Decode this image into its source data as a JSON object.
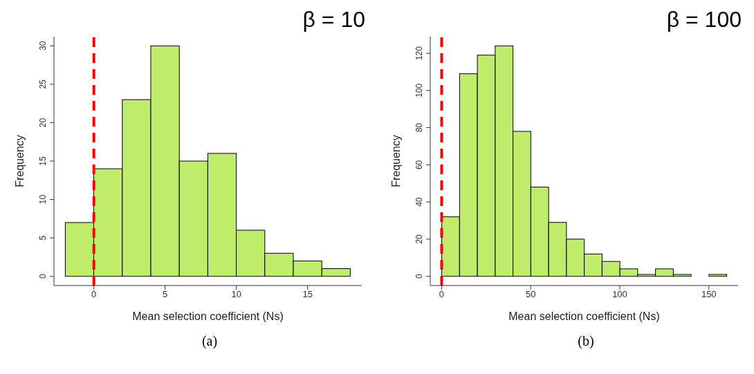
{
  "chart_data": [
    {
      "type": "histogram",
      "title": "β = 10",
      "xlabel": "Mean selection coefficient (Ns)",
      "ylabel": "Frequency",
      "bins": [
        -2,
        0,
        2,
        4,
        6,
        8,
        10,
        12,
        14,
        16,
        18
      ],
      "values": [
        7,
        14,
        23,
        30,
        15,
        16,
        6,
        3,
        2,
        1
      ],
      "color": "#c0ec6b",
      "xlim": [
        -2.8,
        18.8
      ],
      "xticks": [
        0,
        5,
        10,
        15
      ],
      "ylim": [
        -1.2,
        31.2
      ],
      "yticks": [
        0,
        5,
        10,
        15,
        20,
        25,
        30
      ],
      "grid": false,
      "legend": false,
      "ref_lines": [
        {
          "axis": "x",
          "value": 0,
          "color": "#ff0000",
          "line_style": "dashed"
        }
      ],
      "annotations": [
        "(a)"
      ]
    },
    {
      "type": "histogram",
      "title": "β = 100",
      "xlabel": "Mean selection coefficient (Ns)",
      "ylabel": "Frequency",
      "bins": [
        0,
        10,
        20,
        30,
        40,
        50,
        60,
        70,
        80,
        90,
        100,
        110,
        120,
        130,
        140,
        150,
        160
      ],
      "values": [
        32,
        109,
        119,
        124,
        78,
        48,
        29,
        20,
        12,
        8,
        4,
        1,
        4,
        1,
        0,
        1
      ],
      "color": "#c0ec6b",
      "xlim": [
        -6.4,
        166.4
      ],
      "xticks": [
        0,
        50,
        100,
        150
      ],
      "ylim": [
        -4.96,
        128.96
      ],
      "yticks": [
        0,
        20,
        40,
        60,
        80,
        100,
        120
      ],
      "grid": false,
      "legend": false,
      "ref_lines": [
        {
          "axis": "x",
          "value": 0,
          "color": "#ff0000",
          "line_style": "dashed"
        }
      ],
      "annotations": [
        "(b)"
      ]
    }
  ]
}
